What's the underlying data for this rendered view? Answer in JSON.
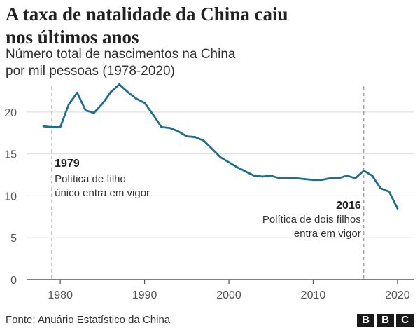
{
  "header": {
    "title_line1": "A taxa de natalidade da China caiu",
    "title_line2": "nos últimos anos",
    "subtitle_line1": "Número total de nascimentos na China",
    "subtitle_line2": "por mil pessoas (1978-2020)"
  },
  "footer": {
    "source": "Fonte: Anuário Estatístico da China",
    "logo_letters": [
      "B",
      "B",
      "C"
    ]
  },
  "colors": {
    "line": "#1f6f8b",
    "grid": "#d9d9d9",
    "axis": "#555555",
    "annotation_line": "#9a9a9a"
  },
  "chart_data": {
    "type": "line",
    "title": "A taxa de natalidade da China caiu nos últimos anos",
    "subtitle": "Número total de nascimentos na China por mil pessoas (1978-2020)",
    "xlabel": "",
    "ylabel": "",
    "xlim": [
      1976,
      2022
    ],
    "ylim": [
      0,
      23.5
    ],
    "x_ticks": [
      1980,
      1990,
      2000,
      2010,
      2020
    ],
    "y_ticks": [
      0,
      5,
      10,
      15,
      20
    ],
    "grid": true,
    "legend": "none",
    "series": [
      {
        "x": [
          1978,
          1979,
          1980,
          1981,
          1982,
          1983,
          1984,
          1985,
          1986,
          1987,
          1988,
          1989,
          1990,
          1991,
          1992,
          1993,
          1994,
          1995,
          1996,
          1997,
          1998,
          1999,
          2000,
          2001,
          2002,
          2003,
          2004,
          2005,
          2006,
          2007,
          2008,
          2009,
          2010,
          2011,
          2012,
          2013,
          2014,
          2015,
          2016,
          2017,
          2018,
          2019,
          2020
        ],
        "values": [
          18.3,
          18.2,
          18.2,
          20.9,
          22.3,
          20.2,
          19.9,
          21.0,
          22.4,
          23.3,
          22.4,
          21.6,
          21.1,
          19.7,
          18.2,
          18.1,
          17.7,
          17.1,
          17.0,
          16.6,
          15.6,
          14.6,
          14.0,
          13.4,
          12.9,
          12.4,
          12.3,
          12.4,
          12.1,
          12.1,
          12.1,
          12.0,
          11.9,
          11.9,
          12.1,
          12.1,
          12.4,
          12.1,
          13.0,
          12.4,
          10.9,
          10.5,
          8.5
        ]
      }
    ],
    "annotations": [
      {
        "year": 1979,
        "label": "1979",
        "text_lines": [
          "Política de filho",
          "único entra em vigor"
        ]
      },
      {
        "year": 2016,
        "label": "2016",
        "text_lines": [
          "Política de dois filhos",
          "entra em vigor"
        ]
      }
    ]
  }
}
